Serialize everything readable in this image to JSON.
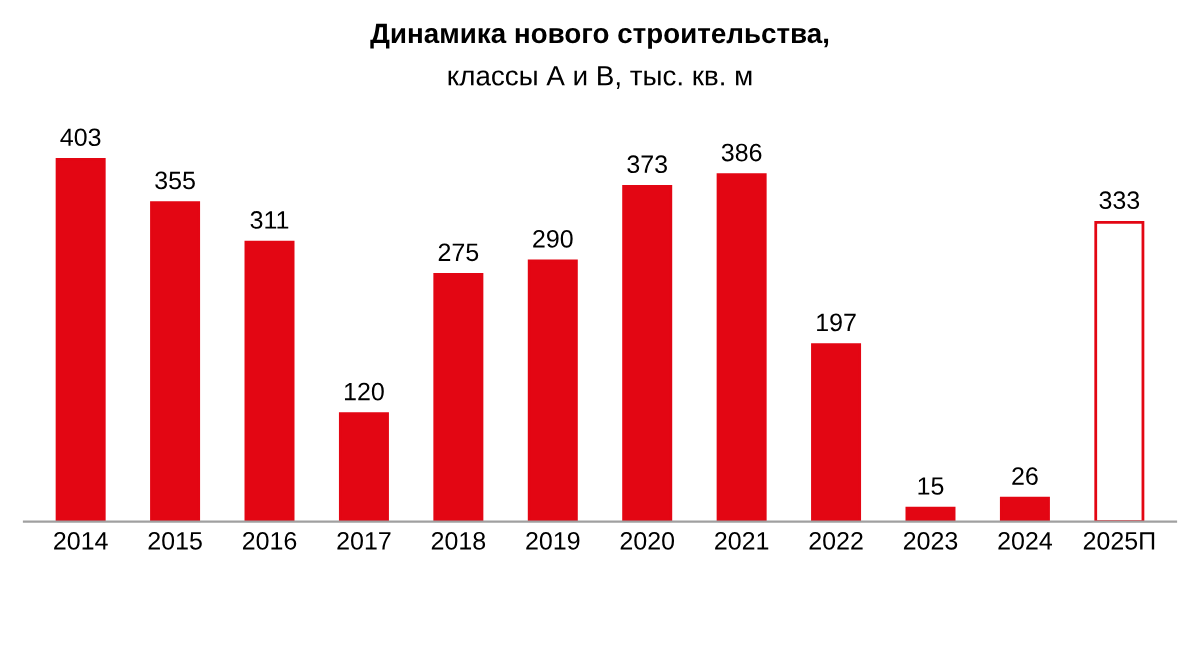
{
  "chart_data": {
    "type": "bar",
    "title": "Динамика нового строительства,",
    "subtitle": "классы А и В, тыс. кв. м",
    "categories": [
      "2014",
      "2015",
      "2016",
      "2017",
      "2018",
      "2019",
      "2020",
      "2021",
      "2022",
      "2023",
      "2024",
      "2025П"
    ],
    "values": [
      403,
      355,
      311,
      120,
      275,
      290,
      373,
      386,
      197,
      15,
      26,
      333
    ],
    "colors": [
      "#e30613",
      "#e30613",
      "#e30613",
      "#e30613",
      "#e30613",
      "#e30613",
      "#e30613",
      "#e30613",
      "#e30613",
      "#e30613",
      "#e30613",
      "#ffffff"
    ],
    "data_labels": true,
    "grid": false,
    "legend": false
  }
}
